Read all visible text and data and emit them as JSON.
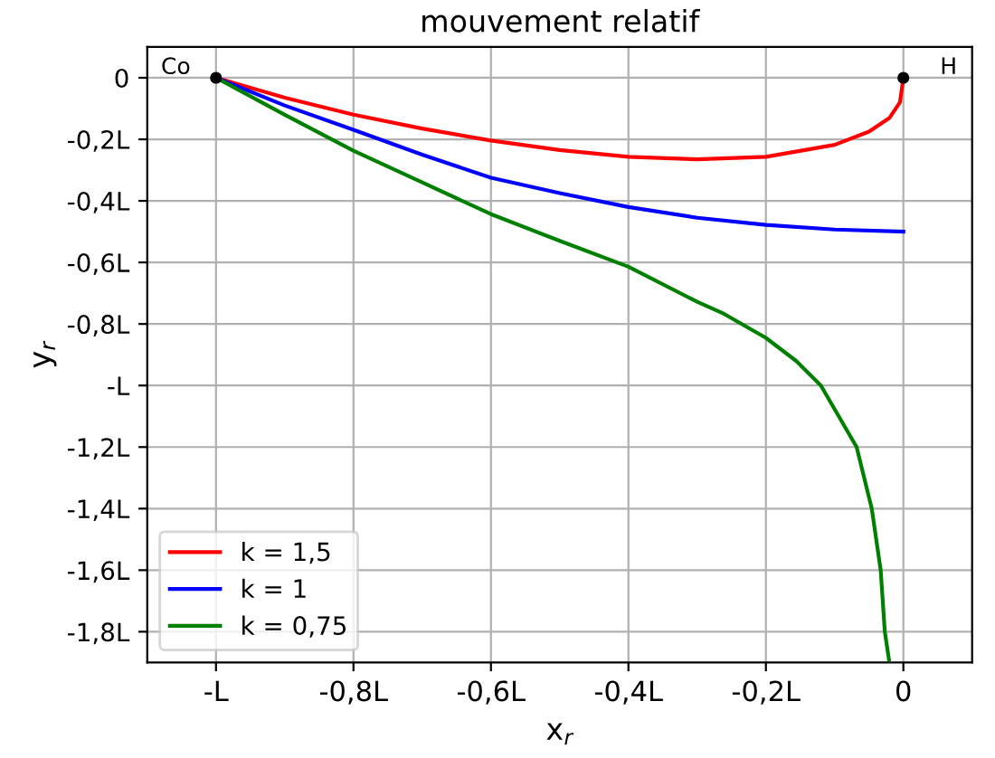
{
  "chart_data": {
    "type": "line",
    "title": "mouvement relatif",
    "xlabel": "x$_{r}$",
    "ylabel": "y$_{r}$",
    "xlim": [
      -1.1,
      0.1
    ],
    "ylim": [
      -1.9,
      0.1
    ],
    "xticks": [
      {
        "value": -1,
        "label": "-L"
      },
      {
        "value": -0.8,
        "label": "-0,8L"
      },
      {
        "value": -0.6,
        "label": "-0,6L"
      },
      {
        "value": -0.4,
        "label": "-0,4L"
      },
      {
        "value": -0.2,
        "label": "-0,2L"
      },
      0
    ],
    "yticks": [
      0,
      {
        "value": -0.2,
        "label": "-0,2L"
      },
      {
        "value": -0.4,
        "label": "-0,4L"
      },
      {
        "value": -0.6,
        "label": "-0,6L"
      },
      {
        "value": -0.8,
        "label": "-0,8L"
      },
      {
        "value": -1,
        "label": "-L"
      },
      {
        "value": -1.2,
        "label": "-1,2L"
      },
      {
        "value": -1.4,
        "label": "-1,4L"
      },
      {
        "value": -1.6,
        "label": "-1,6L"
      },
      {
        "value": -1.8,
        "label": "-1,8L"
      }
    ],
    "grid": true,
    "legend": "bottom left",
    "series": [
      {
        "name": "k = 1,5",
        "color": "#ff0000",
        "x": [
          -1,
          -0.9,
          -0.8,
          -0.7,
          -0.6,
          -0.5,
          -0.4,
          -0.3,
          -0.2,
          -0.1,
          -0.05,
          -0.02,
          -0.005,
          0
        ],
        "values": [
          0,
          -0.065,
          -0.12,
          -0.165,
          -0.204,
          -0.235,
          -0.257,
          -0.265,
          -0.257,
          -0.218,
          -0.175,
          -0.13,
          -0.08,
          0
        ]
      },
      {
        "name": "k = 1",
        "color": "#0000ff",
        "x": [
          -1,
          -0.9,
          -0.8,
          -0.7,
          -0.6,
          -0.5,
          -0.4,
          -0.3,
          -0.2,
          -0.1,
          0
        ],
        "values": [
          0,
          -0.09,
          -0.169,
          -0.25,
          -0.325,
          -0.375,
          -0.42,
          -0.455,
          -0.478,
          -0.493,
          -0.5
        ]
      },
      {
        "name": "k = 0,75",
        "color": "#008000",
        "x": [
          -1,
          -0.9,
          -0.8,
          -0.7,
          -0.6,
          -0.5,
          -0.4,
          -0.3,
          -0.261,
          -0.2,
          -0.156,
          -0.12,
          -0.068,
          -0.046,
          -0.033,
          -0.027,
          -0.021
        ],
        "values": [
          0,
          -0.12,
          -0.237,
          -0.34,
          -0.443,
          -0.53,
          -0.614,
          -0.728,
          -0.767,
          -0.845,
          -0.92,
          -1.0,
          -1.2,
          -1.4,
          -1.6,
          -1.8,
          -1.89
        ]
      },
      {
        "type": "scatter",
        "color": "#000000",
        "marker": "circle",
        "x": [
          -1,
          0
        ],
        "values": [
          0,
          0
        ]
      }
    ],
    "annotations": [
      {
        "text": "Co",
        "x": -1,
        "y": 0
      },
      {
        "text": "H",
        "x": 0,
        "y": 0
      }
    ]
  }
}
